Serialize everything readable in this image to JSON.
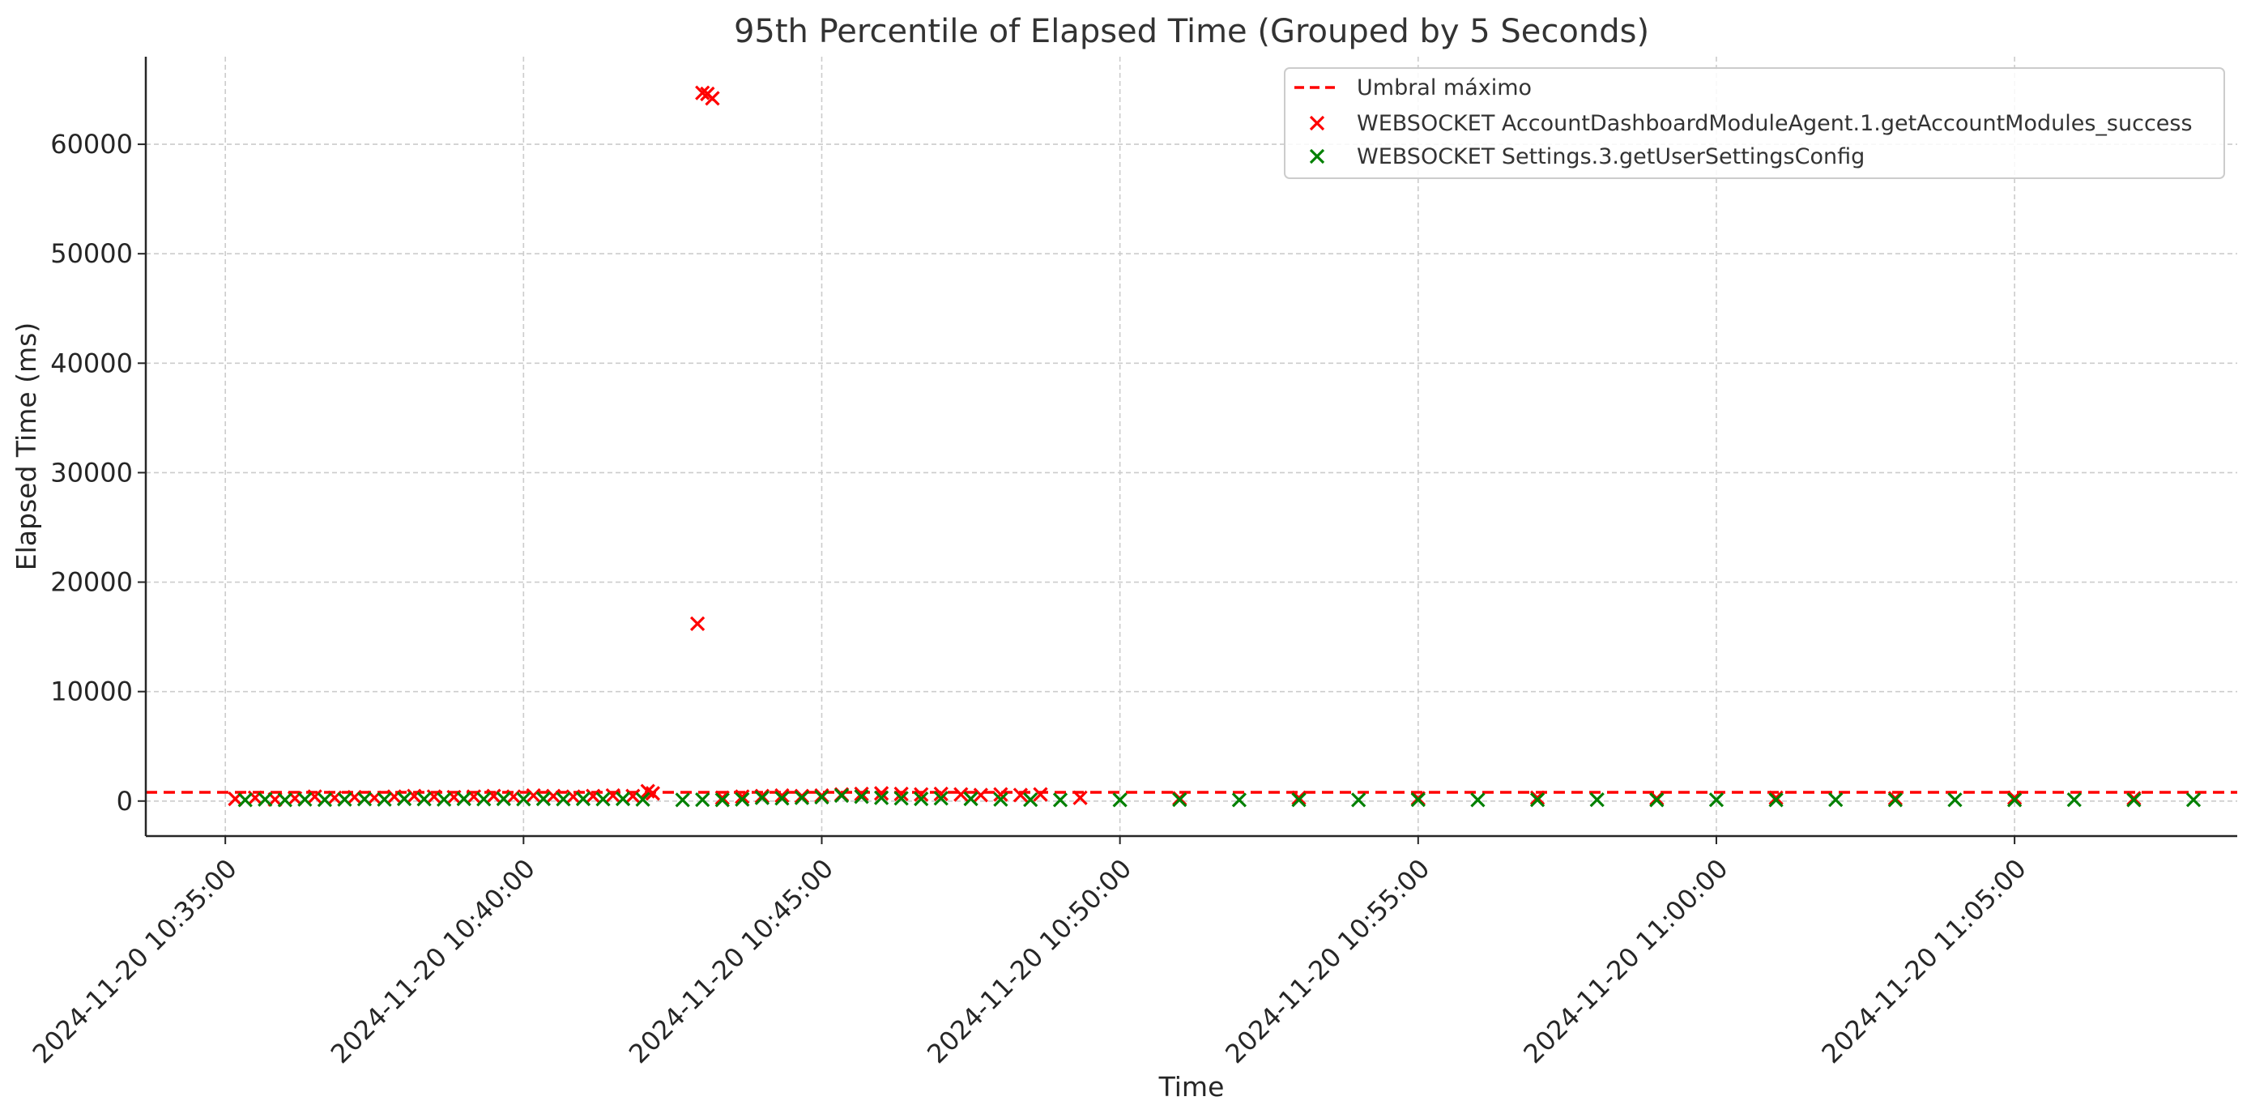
{
  "chart_data": {
    "type": "scatter",
    "title": "95th Percentile of Elapsed Time (Grouped by 5 Seconds)",
    "xlabel": "Time",
    "ylabel": "Elapsed Time (ms)",
    "x_type": "datetime",
    "xlim": [
      "2024-11-20 10:33:40",
      "2024-11-20 11:08:44"
    ],
    "ylim": [
      -3200,
      68000
    ],
    "x_ticks": [
      "2024-11-20 10:35:00",
      "2024-11-20 10:40:00",
      "2024-11-20 10:45:00",
      "2024-11-20 10:50:00",
      "2024-11-20 10:55:00",
      "2024-11-20 11:00:00",
      "2024-11-20 11:05:00"
    ],
    "y_ticks": [
      0,
      10000,
      20000,
      30000,
      40000,
      50000,
      60000
    ],
    "y_tick_labels": [
      "0",
      "10000",
      "20000",
      "30000",
      "40000",
      "50000",
      "60000"
    ],
    "grid": true,
    "legend_position": "top-right",
    "threshold": {
      "name": "Umbral máximo",
      "value": 800,
      "color": "#ff0000",
      "style": "dashed"
    },
    "series": [
      {
        "name": "WEBSOCKET AccountDashboardModuleAgent.1.getAccountModules_success",
        "color": "#ff0000",
        "marker": "x",
        "points": [
          [
            "2024-11-20 10:35:10",
            200
          ],
          [
            "2024-11-20 10:35:30",
            300
          ],
          [
            "2024-11-20 10:35:50",
            150
          ],
          [
            "2024-11-20 10:36:10",
            250
          ],
          [
            "2024-11-20 10:36:30",
            400
          ],
          [
            "2024-11-20 10:36:50",
            300
          ],
          [
            "2024-11-20 10:37:10",
            350
          ],
          [
            "2024-11-20 10:37:30",
            300
          ],
          [
            "2024-11-20 10:37:50",
            400
          ],
          [
            "2024-11-20 10:38:10",
            450
          ],
          [
            "2024-11-20 10:38:30",
            400
          ],
          [
            "2024-11-20 10:38:50",
            350
          ],
          [
            "2024-11-20 10:39:10",
            400
          ],
          [
            "2024-11-20 10:39:30",
            450
          ],
          [
            "2024-11-20 10:39:50",
            400
          ],
          [
            "2024-11-20 10:40:10",
            500
          ],
          [
            "2024-11-20 10:40:30",
            450
          ],
          [
            "2024-11-20 10:40:50",
            400
          ],
          [
            "2024-11-20 10:41:10",
            450
          ],
          [
            "2024-11-20 10:41:30",
            500
          ],
          [
            "2024-11-20 10:41:50",
            450
          ],
          [
            "2024-11-20 10:42:05",
            900
          ],
          [
            "2024-11-20 10:42:10",
            700
          ],
          [
            "2024-11-20 10:42:55",
            16200
          ],
          [
            "2024-11-20 10:43:00",
            64700
          ],
          [
            "2024-11-20 10:43:05",
            64600
          ],
          [
            "2024-11-20 10:43:10",
            64200
          ],
          [
            "2024-11-20 10:43:20",
            300
          ],
          [
            "2024-11-20 10:43:40",
            400
          ],
          [
            "2024-11-20 10:44:00",
            450
          ],
          [
            "2024-11-20 10:44:20",
            500
          ],
          [
            "2024-11-20 10:44:40",
            450
          ],
          [
            "2024-11-20 10:45:00",
            500
          ],
          [
            "2024-11-20 10:45:20",
            600
          ],
          [
            "2024-11-20 10:45:40",
            650
          ],
          [
            "2024-11-20 10:46:00",
            700
          ],
          [
            "2024-11-20 10:46:20",
            650
          ],
          [
            "2024-11-20 10:46:40",
            600
          ],
          [
            "2024-11-20 10:47:00",
            650
          ],
          [
            "2024-11-20 10:47:20",
            600
          ],
          [
            "2024-11-20 10:47:40",
            550
          ],
          [
            "2024-11-20 10:48:00",
            600
          ],
          [
            "2024-11-20 10:48:20",
            550
          ],
          [
            "2024-11-20 10:48:40",
            600
          ],
          [
            "2024-11-20 10:49:20",
            300
          ],
          [
            "2024-11-20 10:51:00",
            250
          ],
          [
            "2024-11-20 10:53:00",
            300
          ],
          [
            "2024-11-20 10:55:00",
            250
          ],
          [
            "2024-11-20 10:57:00",
            300
          ],
          [
            "2024-11-20 10:59:00",
            250
          ],
          [
            "2024-11-20 11:01:00",
            300
          ],
          [
            "2024-11-20 11:03:00",
            250
          ],
          [
            "2024-11-20 11:05:00",
            300
          ],
          [
            "2024-11-20 11:07:00",
            250
          ]
        ]
      },
      {
        "name": "WEBSOCKET Settings.3.getUserSettingsConfig",
        "color": "#008000",
        "marker": "x",
        "points": [
          [
            "2024-11-20 10:35:20",
            100
          ],
          [
            "2024-11-20 10:35:40",
            150
          ],
          [
            "2024-11-20 10:36:00",
            100
          ],
          [
            "2024-11-20 10:36:20",
            150
          ],
          [
            "2024-11-20 10:36:40",
            120
          ],
          [
            "2024-11-20 10:37:00",
            150
          ],
          [
            "2024-11-20 10:37:20",
            180
          ],
          [
            "2024-11-20 10:37:40",
            150
          ],
          [
            "2024-11-20 10:38:00",
            200
          ],
          [
            "2024-11-20 10:38:20",
            180
          ],
          [
            "2024-11-20 10:38:40",
            150
          ],
          [
            "2024-11-20 10:39:00",
            200
          ],
          [
            "2024-11-20 10:39:20",
            180
          ],
          [
            "2024-11-20 10:39:40",
            200
          ],
          [
            "2024-11-20 10:40:00",
            180
          ],
          [
            "2024-11-20 10:40:20",
            200
          ],
          [
            "2024-11-20 10:40:40",
            180
          ],
          [
            "2024-11-20 10:41:00",
            200
          ],
          [
            "2024-11-20 10:41:20",
            180
          ],
          [
            "2024-11-20 10:41:40",
            200
          ],
          [
            "2024-11-20 10:42:00",
            150
          ],
          [
            "2024-11-20 10:42:40",
            100
          ],
          [
            "2024-11-20 10:43:00",
            120
          ],
          [
            "2024-11-20 10:43:20",
            100
          ],
          [
            "2024-11-20 10:43:40",
            150
          ],
          [
            "2024-11-20 10:44:00",
            300
          ],
          [
            "2024-11-20 10:44:20",
            250
          ],
          [
            "2024-11-20 10:44:40",
            300
          ],
          [
            "2024-11-20 10:45:00",
            350
          ],
          [
            "2024-11-20 10:45:20",
            500
          ],
          [
            "2024-11-20 10:45:40",
            400
          ],
          [
            "2024-11-20 10:46:00",
            300
          ],
          [
            "2024-11-20 10:46:20",
            250
          ],
          [
            "2024-11-20 10:46:40",
            200
          ],
          [
            "2024-11-20 10:47:00",
            250
          ],
          [
            "2024-11-20 10:47:30",
            200
          ],
          [
            "2024-11-20 10:48:00",
            150
          ],
          [
            "2024-11-20 10:48:30",
            120
          ],
          [
            "2024-11-20 10:49:00",
            100
          ],
          [
            "2024-11-20 10:50:00",
            100
          ],
          [
            "2024-11-20 10:51:00",
            120
          ],
          [
            "2024-11-20 10:52:00",
            100
          ],
          [
            "2024-11-20 10:53:00",
            110
          ],
          [
            "2024-11-20 10:54:00",
            100
          ],
          [
            "2024-11-20 10:55:00",
            120
          ],
          [
            "2024-11-20 10:56:00",
            100
          ],
          [
            "2024-11-20 10:57:00",
            110
          ],
          [
            "2024-11-20 10:58:00",
            120
          ],
          [
            "2024-11-20 10:59:00",
            100
          ],
          [
            "2024-11-20 11:00:00",
            110
          ],
          [
            "2024-11-20 11:01:00",
            100
          ],
          [
            "2024-11-20 11:02:00",
            120
          ],
          [
            "2024-11-20 11:03:00",
            100
          ],
          [
            "2024-11-20 11:04:00",
            110
          ],
          [
            "2024-11-20 11:05:00",
            100
          ],
          [
            "2024-11-20 11:06:00",
            120
          ],
          [
            "2024-11-20 11:07:00",
            100
          ],
          [
            "2024-11-20 11:08:00",
            110
          ]
        ]
      }
    ]
  }
}
